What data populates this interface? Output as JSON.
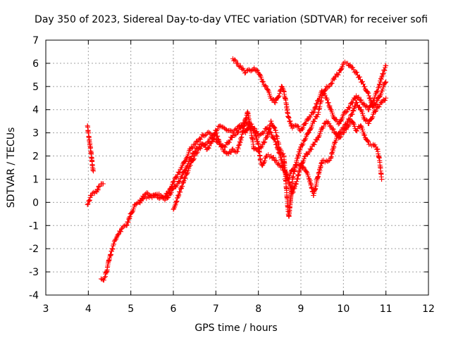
{
  "chart_data": {
    "type": "scatter",
    "title": "Day 350 of 2023, Sidereal Day-to-day VTEC variation (SDTVAR) for receiver sofi",
    "xlabel": "GPS time / hours",
    "ylabel": "SDTVAR / TECUs",
    "xlim": [
      3,
      12
    ],
    "ylim": [
      -4,
      7
    ],
    "xticks": [
      "3",
      "4",
      "5",
      "6",
      "7",
      "8",
      "9",
      "10",
      "11",
      "12"
    ],
    "yticks": [
      "-4",
      "-3",
      "-2",
      "-1",
      "0",
      "1",
      "2",
      "3",
      "4",
      "5",
      "6",
      "7"
    ],
    "grid": true,
    "marker": "+",
    "series": [
      {
        "color": "#ff0000",
        "segments": [
          [
            [
              3.98,
              3.3
            ],
            [
              4.0,
              3.0
            ],
            [
              4.03,
              2.6
            ],
            [
              4.06,
              2.2
            ],
            [
              4.08,
              1.9
            ],
            [
              4.1,
              1.5
            ],
            [
              4.12,
              1.35
            ]
          ],
          [
            [
              3.98,
              -0.1
            ],
            [
              4.02,
              0.05
            ],
            [
              4.06,
              0.3
            ],
            [
              4.1,
              0.4
            ],
            [
              4.15,
              0.4
            ],
            [
              4.2,
              0.45
            ],
            [
              4.25,
              0.7
            ],
            [
              4.3,
              0.8
            ],
            [
              4.35,
              0.8
            ]
          ],
          [
            [
              4.3,
              -3.3
            ],
            [
              4.35,
              -3.35
            ],
            [
              4.4,
              -3.2
            ],
            [
              4.45,
              -2.8
            ],
            [
              4.5,
              -2.4
            ],
            [
              4.55,
              -2.1
            ],
            [
              4.6,
              -1.8
            ],
            [
              4.65,
              -1.6
            ],
            [
              4.7,
              -1.4
            ],
            [
              4.8,
              -1.1
            ],
            [
              4.9,
              -1.0
            ],
            [
              5.0,
              -0.5
            ],
            [
              5.1,
              -0.1
            ],
            [
              5.2,
              0.0
            ],
            [
              5.3,
              0.2
            ],
            [
              5.4,
              0.25
            ],
            [
              5.5,
              0.2
            ],
            [
              5.6,
              0.3
            ],
            [
              5.7,
              0.2
            ],
            [
              5.8,
              0.1
            ],
            [
              5.9,
              0.3
            ],
            [
              6.0,
              0.6
            ],
            [
              6.1,
              0.8
            ],
            [
              6.2,
              1.1
            ],
            [
              6.3,
              1.5
            ],
            [
              6.4,
              1.9
            ],
            [
              6.5,
              2.2
            ],
            [
              6.6,
              2.4
            ],
            [
              6.7,
              2.5
            ],
            [
              6.8,
              2.3
            ],
            [
              6.9,
              2.6
            ],
            [
              7.0,
              3.1
            ],
            [
              7.1,
              3.3
            ],
            [
              7.2,
              3.2
            ],
            [
              7.3,
              3.1
            ],
            [
              7.4,
              3.0
            ],
            [
              7.5,
              3.2
            ],
            [
              7.6,
              3.3
            ],
            [
              7.7,
              3.0
            ],
            [
              7.8,
              3.4
            ],
            [
              7.9,
              3.2
            ],
            [
              8.0,
              2.9
            ],
            [
              8.1,
              3.0
            ],
            [
              8.2,
              3.2
            ],
            [
              8.3,
              3.0
            ],
            [
              8.4,
              2.6
            ],
            [
              8.5,
              2.1
            ],
            [
              8.6,
              1.5
            ],
            [
              8.7,
              1.0
            ],
            [
              8.8,
              0.4
            ],
            [
              8.9,
              0.9
            ],
            [
              9.0,
              1.6
            ],
            [
              9.1,
              2.0
            ],
            [
              9.2,
              2.2
            ],
            [
              9.3,
              2.5
            ],
            [
              9.4,
              2.8
            ],
            [
              9.5,
              3.2
            ],
            [
              9.6,
              3.5
            ],
            [
              9.7,
              3.3
            ],
            [
              9.8,
              3.0
            ],
            [
              9.9,
              2.8
            ],
            [
              10.0,
              3.0
            ],
            [
              10.1,
              3.3
            ],
            [
              10.2,
              3.5
            ],
            [
              10.3,
              3.1
            ],
            [
              10.4,
              3.3
            ],
            [
              10.5,
              2.9
            ],
            [
              10.6,
              2.5
            ],
            [
              10.7,
              2.5
            ],
            [
              10.8,
              2.3
            ],
            [
              10.85,
              1.8
            ],
            [
              10.9,
              1.0
            ]
          ],
          [
            [
              5.2,
              0.0
            ],
            [
              5.3,
              0.25
            ],
            [
              5.4,
              0.4
            ],
            [
              5.5,
              0.3
            ],
            [
              5.6,
              0.35
            ],
            [
              5.7,
              0.3
            ],
            [
              5.8,
              0.25
            ],
            [
              5.9,
              0.5
            ],
            [
              6.0,
              0.9
            ],
            [
              6.1,
              1.2
            ],
            [
              6.2,
              1.5
            ],
            [
              6.3,
              1.9
            ],
            [
              6.4,
              2.3
            ],
            [
              6.5,
              2.5
            ],
            [
              6.6,
              2.7
            ],
            [
              6.7,
              2.9
            ],
            [
              6.8,
              3.0
            ],
            [
              6.9,
              2.9
            ],
            [
              7.0,
              3.0
            ],
            [
              7.1,
              2.5
            ],
            [
              7.2,
              2.2
            ],
            [
              7.3,
              2.1
            ],
            [
              7.4,
              2.3
            ],
            [
              7.5,
              2.2
            ],
            [
              7.6,
              2.8
            ],
            [
              7.7,
              3.6
            ],
            [
              7.75,
              3.9
            ],
            [
              7.8,
              3.3
            ],
            [
              7.85,
              2.8
            ],
            [
              7.9,
              2.3
            ],
            [
              8.0,
              2.2
            ],
            [
              8.1,
              2.5
            ],
            [
              8.2,
              2.8
            ],
            [
              8.3,
              3.5
            ],
            [
              8.4,
              3.1
            ],
            [
              8.5,
              2.3
            ],
            [
              8.6,
              2.0
            ],
            [
              8.65,
              0.8
            ],
            [
              8.7,
              -0.4
            ],
            [
              8.72,
              -0.6
            ],
            [
              8.75,
              0.0
            ],
            [
              8.8,
              1.0
            ],
            [
              8.9,
              1.8
            ],
            [
              9.0,
              2.4
            ],
            [
              9.1,
              2.7
            ],
            [
              9.2,
              3.1
            ],
            [
              9.3,
              3.5
            ],
            [
              9.4,
              3.8
            ],
            [
              9.5,
              4.6
            ],
            [
              9.6,
              5.0
            ],
            [
              9.7,
              5.1
            ],
            [
              9.8,
              5.4
            ],
            [
              9.9,
              5.6
            ],
            [
              10.0,
              6.0
            ],
            [
              10.1,
              6.0
            ],
            [
              10.2,
              5.8
            ],
            [
              10.3,
              5.6
            ],
            [
              10.4,
              5.3
            ],
            [
              10.5,
              5.0
            ],
            [
              10.6,
              4.6
            ],
            [
              10.7,
              4.1
            ],
            [
              10.8,
              4.4
            ],
            [
              10.9,
              4.8
            ],
            [
              11.0,
              5.2
            ]
          ],
          [
            [
              6.0,
              -0.3
            ],
            [
              6.05,
              -0.1
            ],
            [
              6.1,
              0.2
            ],
            [
              6.2,
              0.7
            ],
            [
              6.3,
              1.2
            ],
            [
              6.4,
              1.6
            ],
            [
              6.5,
              2.0
            ],
            [
              6.6,
              2.3
            ],
            [
              6.7,
              2.5
            ],
            [
              6.8,
              2.6
            ],
            [
              6.9,
              2.8
            ],
            [
              7.0,
              2.7
            ],
            [
              7.1,
              2.5
            ],
            [
              7.2,
              2.4
            ],
            [
              7.3,
              2.6
            ],
            [
              7.4,
              2.9
            ],
            [
              7.5,
              3.0
            ],
            [
              7.6,
              3.3
            ],
            [
              7.7,
              3.5
            ],
            [
              7.8,
              3.3
            ],
            [
              7.9,
              3.1
            ],
            [
              8.0,
              2.5
            ],
            [
              8.05,
              1.8
            ],
            [
              8.1,
              1.6
            ],
            [
              8.15,
              1.8
            ],
            [
              8.2,
              2.0
            ],
            [
              8.3,
              2.0
            ],
            [
              8.4,
              1.8
            ],
            [
              8.5,
              1.6
            ],
            [
              8.6,
              1.4
            ],
            [
              8.7,
              1.0
            ],
            [
              8.8,
              1.4
            ],
            [
              8.9,
              1.6
            ],
            [
              9.0,
              1.6
            ],
            [
              9.1,
              1.4
            ],
            [
              9.2,
              1.0
            ],
            [
              9.3,
              0.3
            ],
            [
              9.35,
              0.7
            ],
            [
              9.4,
              1.1
            ],
            [
              9.5,
              1.8
            ],
            [
              9.6,
              1.8
            ],
            [
              9.7,
              1.9
            ],
            [
              9.8,
              2.6
            ],
            [
              9.9,
              3.0
            ],
            [
              10.0,
              3.2
            ],
            [
              10.1,
              3.5
            ],
            [
              10.2,
              3.8
            ],
            [
              10.3,
              4.3
            ],
            [
              10.4,
              4.0
            ],
            [
              10.5,
              3.6
            ],
            [
              10.6,
              3.4
            ],
            [
              10.7,
              3.8
            ],
            [
              10.8,
              4.1
            ],
            [
              10.9,
              4.3
            ],
            [
              11.0,
              4.5
            ]
          ],
          [
            [
              7.4,
              6.2
            ],
            [
              7.5,
              6.0
            ],
            [
              7.6,
              5.8
            ],
            [
              7.7,
              5.6
            ],
            [
              7.8,
              5.7
            ],
            [
              7.9,
              5.8
            ],
            [
              8.0,
              5.6
            ],
            [
              8.1,
              5.2
            ],
            [
              8.2,
              4.9
            ],
            [
              8.3,
              4.5
            ],
            [
              8.4,
              4.3
            ],
            [
              8.5,
              4.7
            ],
            [
              8.55,
              5.0
            ],
            [
              8.6,
              4.8
            ],
            [
              8.65,
              4.3
            ],
            [
              8.7,
              3.7
            ],
            [
              8.8,
              3.2
            ],
            [
              8.9,
              3.3
            ],
            [
              9.0,
              3.1
            ],
            [
              9.1,
              3.4
            ],
            [
              9.2,
              3.7
            ],
            [
              9.3,
              3.9
            ],
            [
              9.4,
              4.4
            ],
            [
              9.5,
              4.8
            ],
            [
              9.6,
              4.5
            ],
            [
              9.7,
              4.0
            ],
            [
              9.8,
              3.6
            ],
            [
              9.9,
              3.4
            ],
            [
              10.0,
              3.8
            ],
            [
              10.1,
              4.0
            ],
            [
              10.2,
              4.3
            ],
            [
              10.3,
              4.6
            ],
            [
              10.4,
              4.4
            ],
            [
              10.5,
              4.2
            ],
            [
              10.6,
              4.0
            ],
            [
              10.7,
              4.4
            ],
            [
              10.8,
              4.8
            ],
            [
              10.9,
              5.4
            ],
            [
              11.0,
              5.9
            ]
          ]
        ]
      }
    ]
  }
}
